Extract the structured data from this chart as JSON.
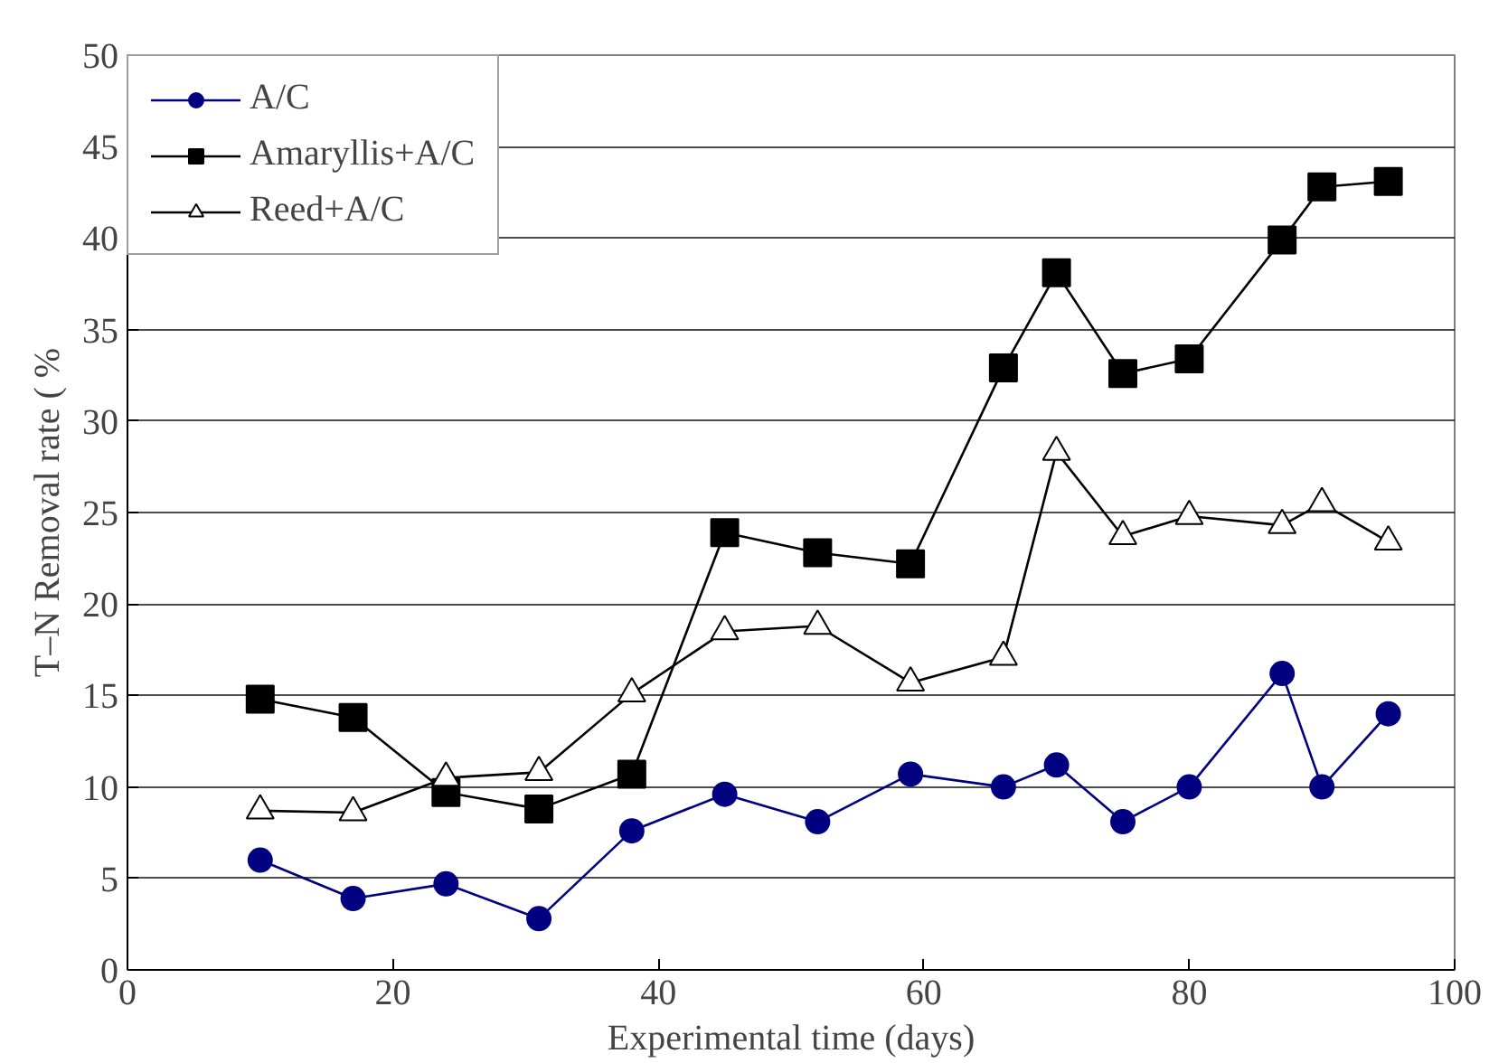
{
  "chart_data": {
    "type": "line",
    "xlabel": "Experimental time (days)",
    "ylabel": "T–N Removal rate ( %",
    "x": [
      10,
      17,
      24,
      31,
      38,
      45,
      52,
      59,
      66,
      70,
      75,
      80,
      87,
      90,
      95
    ],
    "xlim": [
      0,
      100
    ],
    "xticks": [
      0,
      20,
      40,
      60,
      80,
      100
    ],
    "ylim": [
      0,
      50
    ],
    "yticks": [
      0,
      5,
      10,
      15,
      20,
      25,
      30,
      35,
      40,
      45,
      50
    ],
    "grid": "y",
    "legend": "top left",
    "series": [
      {
        "name": "A/C",
        "color": "#000080",
        "marker": "circle",
        "values": [
          6.0,
          3.9,
          4.7,
          2.8,
          7.6,
          9.6,
          8.1,
          10.7,
          10.0,
          11.2,
          8.1,
          10.0,
          16.2,
          10.0,
          14.0
        ]
      },
      {
        "name": "Amaryllis+A/C",
        "color": "#000000",
        "marker": "square",
        "values": [
          14.8,
          13.8,
          9.7,
          8.8,
          10.7,
          23.9,
          22.8,
          22.2,
          32.9,
          38.1,
          32.6,
          33.4,
          39.9,
          42.8,
          43.1
        ]
      },
      {
        "name": "Reed+A/C",
        "color": "#000000",
        "marker": "triangle",
        "values": [
          8.7,
          8.6,
          10.5,
          10.8,
          15.1,
          18.5,
          18.8,
          15.7,
          17.1,
          28.3,
          23.7,
          24.8,
          24.3,
          25.5,
          23.4
        ]
      }
    ]
  }
}
